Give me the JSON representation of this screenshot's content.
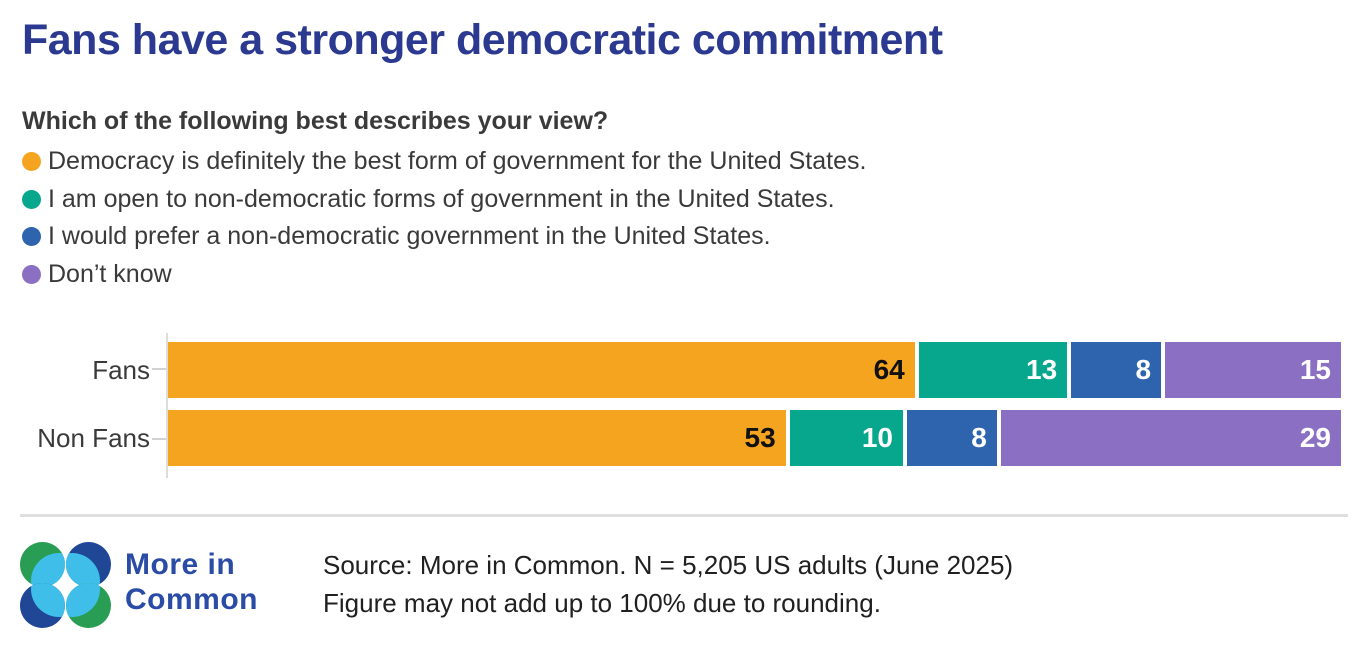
{
  "chart": {
    "title": "Fans have a stronger democratic commitment",
    "question": "Which of the following best describes your view?"
  },
  "chart_data": {
    "type": "bar",
    "orientation": "horizontal-stacked",
    "title": "Fans have a stronger democratic commitment",
    "subtitle": "Which of the following best describes your view?",
    "categories": [
      "Fans",
      "Non Fans"
    ],
    "series": [
      {
        "name": "Democracy is definitely the best form of government for the United States.",
        "color": "#F5A41F",
        "label_color": "#111111",
        "values": [
          64,
          53
        ]
      },
      {
        "name": "I am open to non-democratic forms of government in the United States.",
        "color": "#06A78C",
        "label_color": "#FFFFFF",
        "values": [
          13,
          10
        ]
      },
      {
        "name": "I would prefer a non-democratic government in the United States.",
        "color": "#2E63AE",
        "label_color": "#FFFFFF",
        "values": [
          8,
          8
        ]
      },
      {
        "name": "Don’t know",
        "color": "#8A6FC2",
        "label_color": "#FFFFFF",
        "values": [
          15,
          29
        ]
      }
    ],
    "xlim": [
      0,
      100
    ],
    "grid": false,
    "legend_position": "top-left",
    "value_labels": "inside-right"
  },
  "footer": {
    "logo_text_line1": "More in",
    "logo_text_line2": "Common",
    "logo_green": "#2A9D54",
    "logo_dark_blue": "#1F4796",
    "logo_light_blue": "#3EBEE8",
    "source_line1": "Source: More in Common. N = 5,205 US adults (June 2025)",
    "source_line2": "Figure may not add up to 100% due to rounding."
  }
}
